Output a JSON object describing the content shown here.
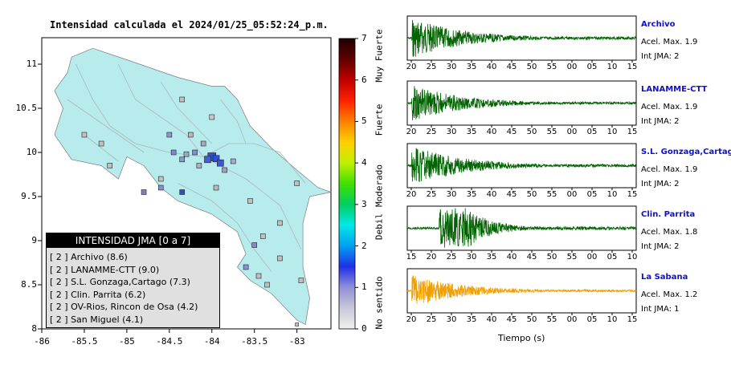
{
  "map": {
    "title": "Intensidad calculada el 2024/01/25_05:52:24_p.m.",
    "x_ticks": [
      "-86",
      "-85.5",
      "-85",
      "-84.5",
      "-84",
      "-83.5",
      "-83"
    ],
    "y_ticks": [
      "11",
      "10.5",
      "10",
      "9.5",
      "9",
      "8.5",
      "8"
    ],
    "land_color": "#b8ecec"
  },
  "colorbar": {
    "ticks": [
      "0",
      "1",
      "2",
      "3",
      "4",
      "5",
      "6",
      "7"
    ],
    "labels": [
      "No sentido",
      "Debil",
      "Moderado",
      "Fuerte",
      "Muy Fuerte"
    ]
  },
  "legend": {
    "title": "INTENSIDAD JMA [0 a 7]",
    "rows": [
      "[ 2 ]  Archivo (8.6)",
      "[ 2 ]  LANAMME-CTT (9.0)",
      "[ 2 ]  S.L. Gonzaga,Cartago (7.3)",
      "[ 2 ]  Clin. Parrita (6.2)",
      "[ 2 ]  OV-Rios, Rincon de Osa (4.2)",
      "[ 2 ]  San Miguel (4.1)"
    ]
  },
  "chart_data": [
    {
      "type": "scatter",
      "title": "Intensidad calculada el 2024/01/25_05:52:24_p.m.",
      "xlim": [
        -86,
        -82.6
      ],
      "ylim": [
        8,
        11.3
      ]
    },
    {
      "type": "line",
      "station": "Archivo",
      "pga_text": "Acel. Max. 1.9",
      "jma_text": "Int JMA: 2",
      "color": "#006400",
      "x_ticks": [
        "20",
        "25",
        "30",
        "35",
        "40",
        "45",
        "50",
        "55",
        "00",
        "05",
        "10",
        "15"
      ],
      "amplitude": 1.0
    },
    {
      "type": "line",
      "station": "LANAMME-CTT",
      "pga_text": "Acel. Max. 1.9",
      "jma_text": "Int JMA: 2",
      "color": "#006400",
      "x_ticks": [
        "20",
        "25",
        "30",
        "35",
        "40",
        "45",
        "50",
        "55",
        "00",
        "05",
        "10",
        "15"
      ],
      "amplitude": 0.9
    },
    {
      "type": "line",
      "station": "S.L. Gonzaga,Cartago",
      "pga_text": "Acel. Max. 1.9",
      "jma_text": "Int JMA: 2",
      "color": "#006400",
      "x_ticks": [
        "20",
        "25",
        "30",
        "35",
        "40",
        "45",
        "50",
        "55",
        "00",
        "05",
        "10",
        "15"
      ],
      "amplitude": 1.0
    },
    {
      "type": "line",
      "station": "Clin. Parrita",
      "pga_text": "Acel. Max. 1.8",
      "jma_text": "Int JMA: 2",
      "color": "#006400",
      "x_ticks": [
        "15",
        "20",
        "25",
        "30",
        "35",
        "40",
        "45",
        "50",
        "55",
        "00",
        "05",
        "10"
      ],
      "amplitude": 1.0
    },
    {
      "type": "line",
      "station": "La Sabana",
      "pga_text": "Acel. Max. 1.2",
      "jma_text": "Int JMA: 1",
      "color": "#f0a000",
      "x_ticks": [
        "20",
        "25",
        "30",
        "35",
        "40",
        "45",
        "50",
        "55",
        "00",
        "05",
        "10",
        "15"
      ],
      "amplitude": 0.8,
      "xlabel": "Tiempo (s)"
    }
  ]
}
